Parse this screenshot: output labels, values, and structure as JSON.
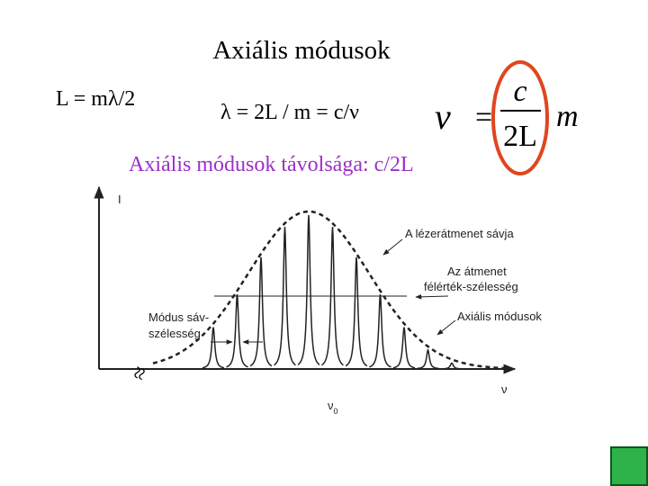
{
  "header": {
    "title": "Axiális módusok"
  },
  "equations": {
    "length": "L = mλ/2",
    "wavelength": "λ = 2L / m = c/ν",
    "spacing": "Axiális módusok távolsága: c/2L",
    "frequency": {
      "lhs": "ν",
      "equals": "=",
      "numerator": "c",
      "denominator": "2L",
      "dot": "·",
      "factor": "m"
    }
  },
  "figure": {
    "y_axis_label": "I",
    "x_axis_label": "ν",
    "center_label": {
      "symbol": "ν",
      "subscript": "0"
    },
    "labels": {
      "band": "A lézerátmenet sávja",
      "fwhm": [
        "Az átmenet",
        "félérték-szélesség"
      ],
      "modes": "Axiális módusok",
      "mode_width": [
        "Módus sáv-",
        "szélesség"
      ]
    }
  }
}
